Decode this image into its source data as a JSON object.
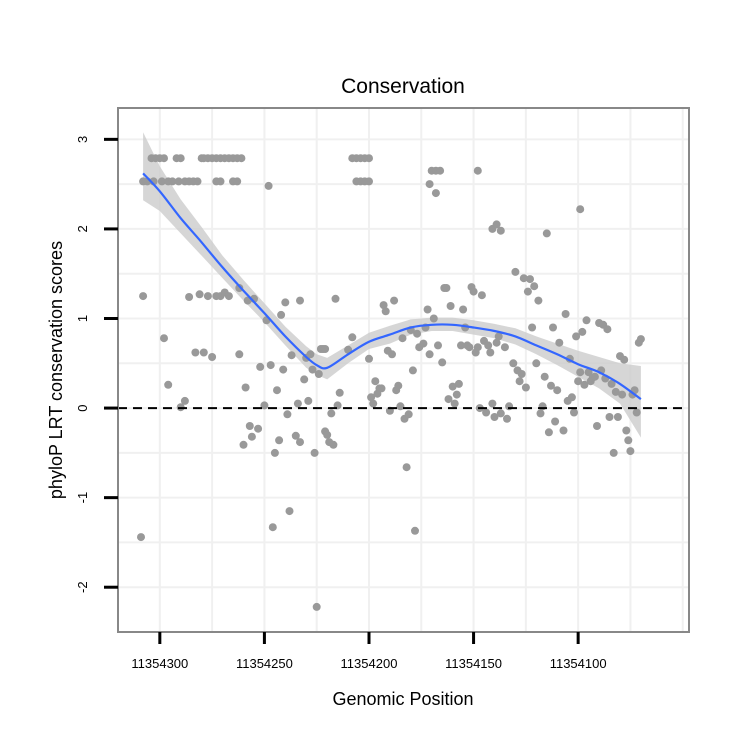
{
  "chart_data": {
    "type": "scatter",
    "title": "Conservation",
    "xlabel": "Genomic Position",
    "ylabel": "phyloP LRT conservation scores",
    "x_reversed": true,
    "xlim": [
      11354320,
      11354047
    ],
    "ylim": [
      -2.5,
      3.35
    ],
    "x_ticks": [
      11354300,
      11354250,
      11354200,
      11354150,
      11354100
    ],
    "x_tick_labels": [
      "11354300",
      "11354250",
      "11354200",
      "11354150",
      "11354100"
    ],
    "y_ticks": [
      -2,
      -1,
      0,
      1,
      2,
      3
    ],
    "y_tick_labels": [
      "-2",
      "-1",
      "0",
      "1",
      "2",
      "3"
    ],
    "reference_line": {
      "y": 0,
      "style": "dashed",
      "color": "#000000"
    },
    "grid": true,
    "colors": {
      "points": "#999999",
      "smooth_line": "#3366FF",
      "ribbon": "#CCCCCC",
      "panel_border": "#888888"
    },
    "points": [
      {
        "x": 11354308,
        "y": 2.53
      },
      {
        "x": 11354306,
        "y": 2.53
      },
      {
        "x": 11354304,
        "y": 2.79
      },
      {
        "x": 11354303,
        "y": 2.53
      },
      {
        "x": 11354302,
        "y": 2.79
      },
      {
        "x": 11354300,
        "y": 2.79
      },
      {
        "x": 11354299,
        "y": 2.53
      },
      {
        "x": 11354298,
        "y": 2.79
      },
      {
        "x": 11354296,
        "y": 2.53
      },
      {
        "x": 11354294,
        "y": 2.53
      },
      {
        "x": 11354292,
        "y": 2.79
      },
      {
        "x": 11354291,
        "y": 2.53
      },
      {
        "x": 11354290,
        "y": 2.79
      },
      {
        "x": 11354288,
        "y": 2.53
      },
      {
        "x": 11354286,
        "y": 2.53
      },
      {
        "x": 11354284,
        "y": 2.53
      },
      {
        "x": 11354282,
        "y": 2.53
      },
      {
        "x": 11354280,
        "y": 2.79
      },
      {
        "x": 11354279,
        "y": 2.79
      },
      {
        "x": 11354277,
        "y": 2.79
      },
      {
        "x": 11354275,
        "y": 2.79
      },
      {
        "x": 11354273,
        "y": 2.79
      },
      {
        "x": 11354271,
        "y": 2.79
      },
      {
        "x": 11354269,
        "y": 2.79
      },
      {
        "x": 11354267,
        "y": 2.79
      },
      {
        "x": 11354265,
        "y": 2.79
      },
      {
        "x": 11354263,
        "y": 2.79
      },
      {
        "x": 11354261,
        "y": 2.79
      },
      {
        "x": 11354273,
        "y": 2.53
      },
      {
        "x": 11354271,
        "y": 2.53
      },
      {
        "x": 11354265,
        "y": 2.53
      },
      {
        "x": 11354263,
        "y": 2.53
      },
      {
        "x": 11354248,
        "y": 2.48
      },
      {
        "x": 11354208,
        "y": 2.79
      },
      {
        "x": 11354206,
        "y": 2.79
      },
      {
        "x": 11354204,
        "y": 2.79
      },
      {
        "x": 11354202,
        "y": 2.79
      },
      {
        "x": 11354200,
        "y": 2.79
      },
      {
        "x": 11354206,
        "y": 2.53
      },
      {
        "x": 11354204,
        "y": 2.53
      },
      {
        "x": 11354202,
        "y": 2.53
      },
      {
        "x": 11354200,
        "y": 2.53
      },
      {
        "x": 11354170,
        "y": 2.65
      },
      {
        "x": 11354168,
        "y": 2.65
      },
      {
        "x": 11354166,
        "y": 2.65
      },
      {
        "x": 11354171,
        "y": 2.5
      },
      {
        "x": 11354168,
        "y": 2.4
      },
      {
        "x": 11354148,
        "y": 2.65
      },
      {
        "x": 11354141,
        "y": 2.0
      },
      {
        "x": 11354139,
        "y": 2.05
      },
      {
        "x": 11354137,
        "y": 1.98
      },
      {
        "x": 11354099,
        "y": 2.22
      },
      {
        "x": 11354115,
        "y": 1.95
      },
      {
        "x": 11354308,
        "y": 1.25
      },
      {
        "x": 11354298,
        "y": 0.78
      },
      {
        "x": 11354296,
        "y": 0.26
      },
      {
        "x": 11354290,
        "y": 0.01
      },
      {
        "x": 11354288,
        "y": 0.08
      },
      {
        "x": 11354286,
        "y": 1.24
      },
      {
        "x": 11354283,
        "y": 0.62
      },
      {
        "x": 11354281,
        "y": 1.27
      },
      {
        "x": 11354279,
        "y": 0.62
      },
      {
        "x": 11354277,
        "y": 1.25
      },
      {
        "x": 11354275,
        "y": 0.57
      },
      {
        "x": 11354273,
        "y": 1.25
      },
      {
        "x": 11354271,
        "y": 1.25
      },
      {
        "x": 11354269,
        "y": 1.29
      },
      {
        "x": 11354267,
        "y": 1.25
      },
      {
        "x": 11354262,
        "y": 0.6
      },
      {
        "x": 11354262,
        "y": 1.34
      },
      {
        "x": 11354260,
        "y": -0.41
      },
      {
        "x": 11354259,
        "y": 0.23
      },
      {
        "x": 11354257,
        "y": -0.2
      },
      {
        "x": 11354256,
        "y": -0.32
      },
      {
        "x": 11354258,
        "y": 1.2
      },
      {
        "x": 11354255,
        "y": 1.22
      },
      {
        "x": 11354253,
        "y": -0.23
      },
      {
        "x": 11354252,
        "y": 0.46
      },
      {
        "x": 11354250,
        "y": 0.03
      },
      {
        "x": 11354249,
        "y": 0.98
      },
      {
        "x": 11354247,
        "y": 0.48
      },
      {
        "x": 11354246,
        "y": -1.33
      },
      {
        "x": 11354245,
        "y": -0.5
      },
      {
        "x": 11354244,
        "y": 0.2
      },
      {
        "x": 11354243,
        "y": -0.36
      },
      {
        "x": 11354242,
        "y": 1.04
      },
      {
        "x": 11354241,
        "y": 0.43
      },
      {
        "x": 11354240,
        "y": 1.18
      },
      {
        "x": 11354239,
        "y": -0.07
      },
      {
        "x": 11354238,
        "y": -1.15
      },
      {
        "x": 11354237,
        "y": 0.59
      },
      {
        "x": 11354235,
        "y": -0.31
      },
      {
        "x": 11354234,
        "y": 0.05
      },
      {
        "x": 11354233,
        "y": 1.2
      },
      {
        "x": 11354233,
        "y": -0.38
      },
      {
        "x": 11354231,
        "y": 0.32
      },
      {
        "x": 11354230,
        "y": 0.56
      },
      {
        "x": 11354229,
        "y": 0.08
      },
      {
        "x": 11354228,
        "y": 0.6
      },
      {
        "x": 11354227,
        "y": 0.43
      },
      {
        "x": 11354226,
        "y": -0.5
      },
      {
        "x": 11354225,
        "y": -2.22
      },
      {
        "x": 11354224,
        "y": 0.38
      },
      {
        "x": 11354223,
        "y": 0.66
      },
      {
        "x": 11354222,
        "y": 0.66
      },
      {
        "x": 11354221,
        "y": -0.26
      },
      {
        "x": 11354221,
        "y": 0.66
      },
      {
        "x": 11354220,
        "y": -0.3
      },
      {
        "x": 11354219,
        "y": -0.38
      },
      {
        "x": 11354218,
        "y": -0.06
      },
      {
        "x": 11354217,
        "y": -0.41
      },
      {
        "x": 11354216,
        "y": 1.22
      },
      {
        "x": 11354215,
        "y": 0.03
      },
      {
        "x": 11354214,
        "y": 0.17
      },
      {
        "x": 11354210,
        "y": 0.65
      },
      {
        "x": 11354208,
        "y": 0.79
      },
      {
        "x": 11354200,
        "y": 0.55
      },
      {
        "x": 11354199,
        "y": 0.12
      },
      {
        "x": 11354198,
        "y": 0.05
      },
      {
        "x": 11354197,
        "y": 0.3
      },
      {
        "x": 11354196,
        "y": 0.16
      },
      {
        "x": 11354195,
        "y": 0.22
      },
      {
        "x": 11354194,
        "y": 0.22
      },
      {
        "x": 11354193,
        "y": 1.15
      },
      {
        "x": 11354192,
        "y": 1.08
      },
      {
        "x": 11354191,
        "y": 0.64
      },
      {
        "x": 11354190,
        "y": -0.03
      },
      {
        "x": 11354189,
        "y": 0.6
      },
      {
        "x": 11354188,
        "y": 1.2
      },
      {
        "x": 11354187,
        "y": 0.2
      },
      {
        "x": 11354186,
        "y": 0.25
      },
      {
        "x": 11354185,
        "y": 0.02
      },
      {
        "x": 11354184,
        "y": 0.78
      },
      {
        "x": 11354183,
        "y": -0.12
      },
      {
        "x": 11354182,
        "y": -0.66
      },
      {
        "x": 11354181,
        "y": -0.07
      },
      {
        "x": 11354180,
        "y": 0.87
      },
      {
        "x": 11354179,
        "y": 0.42
      },
      {
        "x": 11354178,
        "y": -1.37
      },
      {
        "x": 11354177,
        "y": 0.83
      },
      {
        "x": 11354176,
        "y": 0.68
      },
      {
        "x": 11354174,
        "y": 0.72
      },
      {
        "x": 11354173,
        "y": 0.9
      },
      {
        "x": 11354172,
        "y": 1.1
      },
      {
        "x": 11354171,
        "y": 0.6
      },
      {
        "x": 11354169,
        "y": 1.0
      },
      {
        "x": 11354167,
        "y": 0.7
      },
      {
        "x": 11354165,
        "y": 0.51
      },
      {
        "x": 11354164,
        "y": 1.34
      },
      {
        "x": 11354163,
        "y": 1.34
      },
      {
        "x": 11354162,
        "y": 0.1
      },
      {
        "x": 11354161,
        "y": 1.14
      },
      {
        "x": 11354160,
        "y": 0.24
      },
      {
        "x": 11354159,
        "y": 0.05
      },
      {
        "x": 11354158,
        "y": 0.15
      },
      {
        "x": 11354157,
        "y": 0.27
      },
      {
        "x": 11354156,
        "y": 0.7
      },
      {
        "x": 11354155,
        "y": 1.1
      },
      {
        "x": 11354154,
        "y": 0.9
      },
      {
        "x": 11354153,
        "y": 0.7
      },
      {
        "x": 11354152,
        "y": 0.68
      },
      {
        "x": 11354151,
        "y": 1.35
      },
      {
        "x": 11354150,
        "y": 1.3
      },
      {
        "x": 11354149,
        "y": 0.62
      },
      {
        "x": 11354148,
        "y": 0.68
      },
      {
        "x": 11354147,
        "y": 0.0
      },
      {
        "x": 11354146,
        "y": 1.26
      },
      {
        "x": 11354145,
        "y": 0.75
      },
      {
        "x": 11354144,
        "y": -0.05
      },
      {
        "x": 11354143,
        "y": 0.7
      },
      {
        "x": 11354142,
        "y": 0.62
      },
      {
        "x": 11354141,
        "y": 0.05
      },
      {
        "x": 11354140,
        "y": -0.1
      },
      {
        "x": 11354139,
        "y": 0.73
      },
      {
        "x": 11354138,
        "y": 0.8
      },
      {
        "x": 11354137,
        "y": -0.06
      },
      {
        "x": 11354135,
        "y": 0.68
      },
      {
        "x": 11354134,
        "y": -0.12
      },
      {
        "x": 11354133,
        "y": 0.02
      },
      {
        "x": 11354131,
        "y": 0.5
      },
      {
        "x": 11354130,
        "y": 1.52
      },
      {
        "x": 11354129,
        "y": 0.42
      },
      {
        "x": 11354128,
        "y": 0.3
      },
      {
        "x": 11354127,
        "y": 0.38
      },
      {
        "x": 11354126,
        "y": 1.45
      },
      {
        "x": 11354125,
        "y": 0.23
      },
      {
        "x": 11354124,
        "y": 1.3
      },
      {
        "x": 11354123,
        "y": 1.44
      },
      {
        "x": 11354122,
        "y": 0.9
      },
      {
        "x": 11354121,
        "y": 1.36
      },
      {
        "x": 11354120,
        "y": 0.5
      },
      {
        "x": 11354119,
        "y": 1.2
      },
      {
        "x": 11354118,
        "y": -0.06
      },
      {
        "x": 11354117,
        "y": 0.02
      },
      {
        "x": 11354116,
        "y": 0.35
      },
      {
        "x": 11354114,
        "y": -0.27
      },
      {
        "x": 11354113,
        "y": 0.25
      },
      {
        "x": 11354112,
        "y": 0.9
      },
      {
        "x": 11354111,
        "y": -0.15
      },
      {
        "x": 11354110,
        "y": 0.2
      },
      {
        "x": 11354109,
        "y": 0.73
      },
      {
        "x": 11354107,
        "y": -0.25
      },
      {
        "x": 11354106,
        "y": 1.05
      },
      {
        "x": 11354105,
        "y": 0.08
      },
      {
        "x": 11354104,
        "y": 0.55
      },
      {
        "x": 11354103,
        "y": 0.12
      },
      {
        "x": 11354102,
        "y": -0.05
      },
      {
        "x": 11354101,
        "y": 0.8
      },
      {
        "x": 11354100,
        "y": 0.3
      },
      {
        "x": 11354099,
        "y": 0.4
      },
      {
        "x": 11354098,
        "y": 0.85
      },
      {
        "x": 11354097,
        "y": 0.26
      },
      {
        "x": 11354096,
        "y": 0.98
      },
      {
        "x": 11354095,
        "y": 0.4
      },
      {
        "x": 11354094,
        "y": 0.3
      },
      {
        "x": 11354093,
        "y": 0.34
      },
      {
        "x": 11354092,
        "y": 0.35
      },
      {
        "x": 11354091,
        "y": -0.2
      },
      {
        "x": 11354090,
        "y": 0.95
      },
      {
        "x": 11354089,
        "y": 0.42
      },
      {
        "x": 11354088,
        "y": 0.93
      },
      {
        "x": 11354087,
        "y": 0.33
      },
      {
        "x": 11354086,
        "y": 0.88
      },
      {
        "x": 11354085,
        "y": -0.1
      },
      {
        "x": 11354084,
        "y": 0.27
      },
      {
        "x": 11354083,
        "y": -0.5
      },
      {
        "x": 11354082,
        "y": 0.18
      },
      {
        "x": 11354081,
        "y": -0.1
      },
      {
        "x": 11354080,
        "y": 0.58
      },
      {
        "x": 11354079,
        "y": 0.15
      },
      {
        "x": 11354078,
        "y": 0.54
      },
      {
        "x": 11354077,
        "y": -0.25
      },
      {
        "x": 11354076,
        "y": -0.36
      },
      {
        "x": 11354075,
        "y": -0.48
      },
      {
        "x": 11354074,
        "y": 0.15
      },
      {
        "x": 11354073,
        "y": 0.2
      },
      {
        "x": 11354072,
        "y": -0.05
      },
      {
        "x": 11354071,
        "y": 0.73
      },
      {
        "x": 11354070,
        "y": 0.77
      },
      {
        "x": 11354309,
        "y": -1.44
      }
    ],
    "smooth_line": {
      "method": "loess",
      "x": [
        11354308,
        11354300,
        11354290,
        11354280,
        11354270,
        11354260,
        11354250,
        11354240,
        11354230,
        11354225,
        11354220,
        11354210,
        11354200,
        11354190,
        11354180,
        11354170,
        11354160,
        11354150,
        11354140,
        11354130,
        11354120,
        11354110,
        11354100,
        11354090,
        11354080,
        11354070
      ],
      "y": [
        2.62,
        2.42,
        2.12,
        1.85,
        1.57,
        1.31,
        1.06,
        0.8,
        0.57,
        0.48,
        0.45,
        0.6,
        0.74,
        0.82,
        0.9,
        0.93,
        0.93,
        0.9,
        0.86,
        0.8,
        0.7,
        0.6,
        0.49,
        0.4,
        0.27,
        0.1
      ],
      "ci_low": [
        2.32,
        2.2,
        1.95,
        1.7,
        1.45,
        1.2,
        0.96,
        0.7,
        0.45,
        0.37,
        0.32,
        0.5,
        0.66,
        0.72,
        0.82,
        0.86,
        0.86,
        0.82,
        0.78,
        0.71,
        0.6,
        0.48,
        0.35,
        0.22,
        0.05,
        -0.33
      ],
      "ci_high": [
        3.08,
        2.7,
        2.33,
        2.02,
        1.7,
        1.43,
        1.17,
        0.91,
        0.69,
        0.6,
        0.56,
        0.7,
        0.84,
        0.92,
        0.99,
        1.01,
        1.01,
        0.98,
        0.94,
        0.89,
        0.8,
        0.72,
        0.64,
        0.57,
        0.5,
        0.47
      ]
    }
  }
}
